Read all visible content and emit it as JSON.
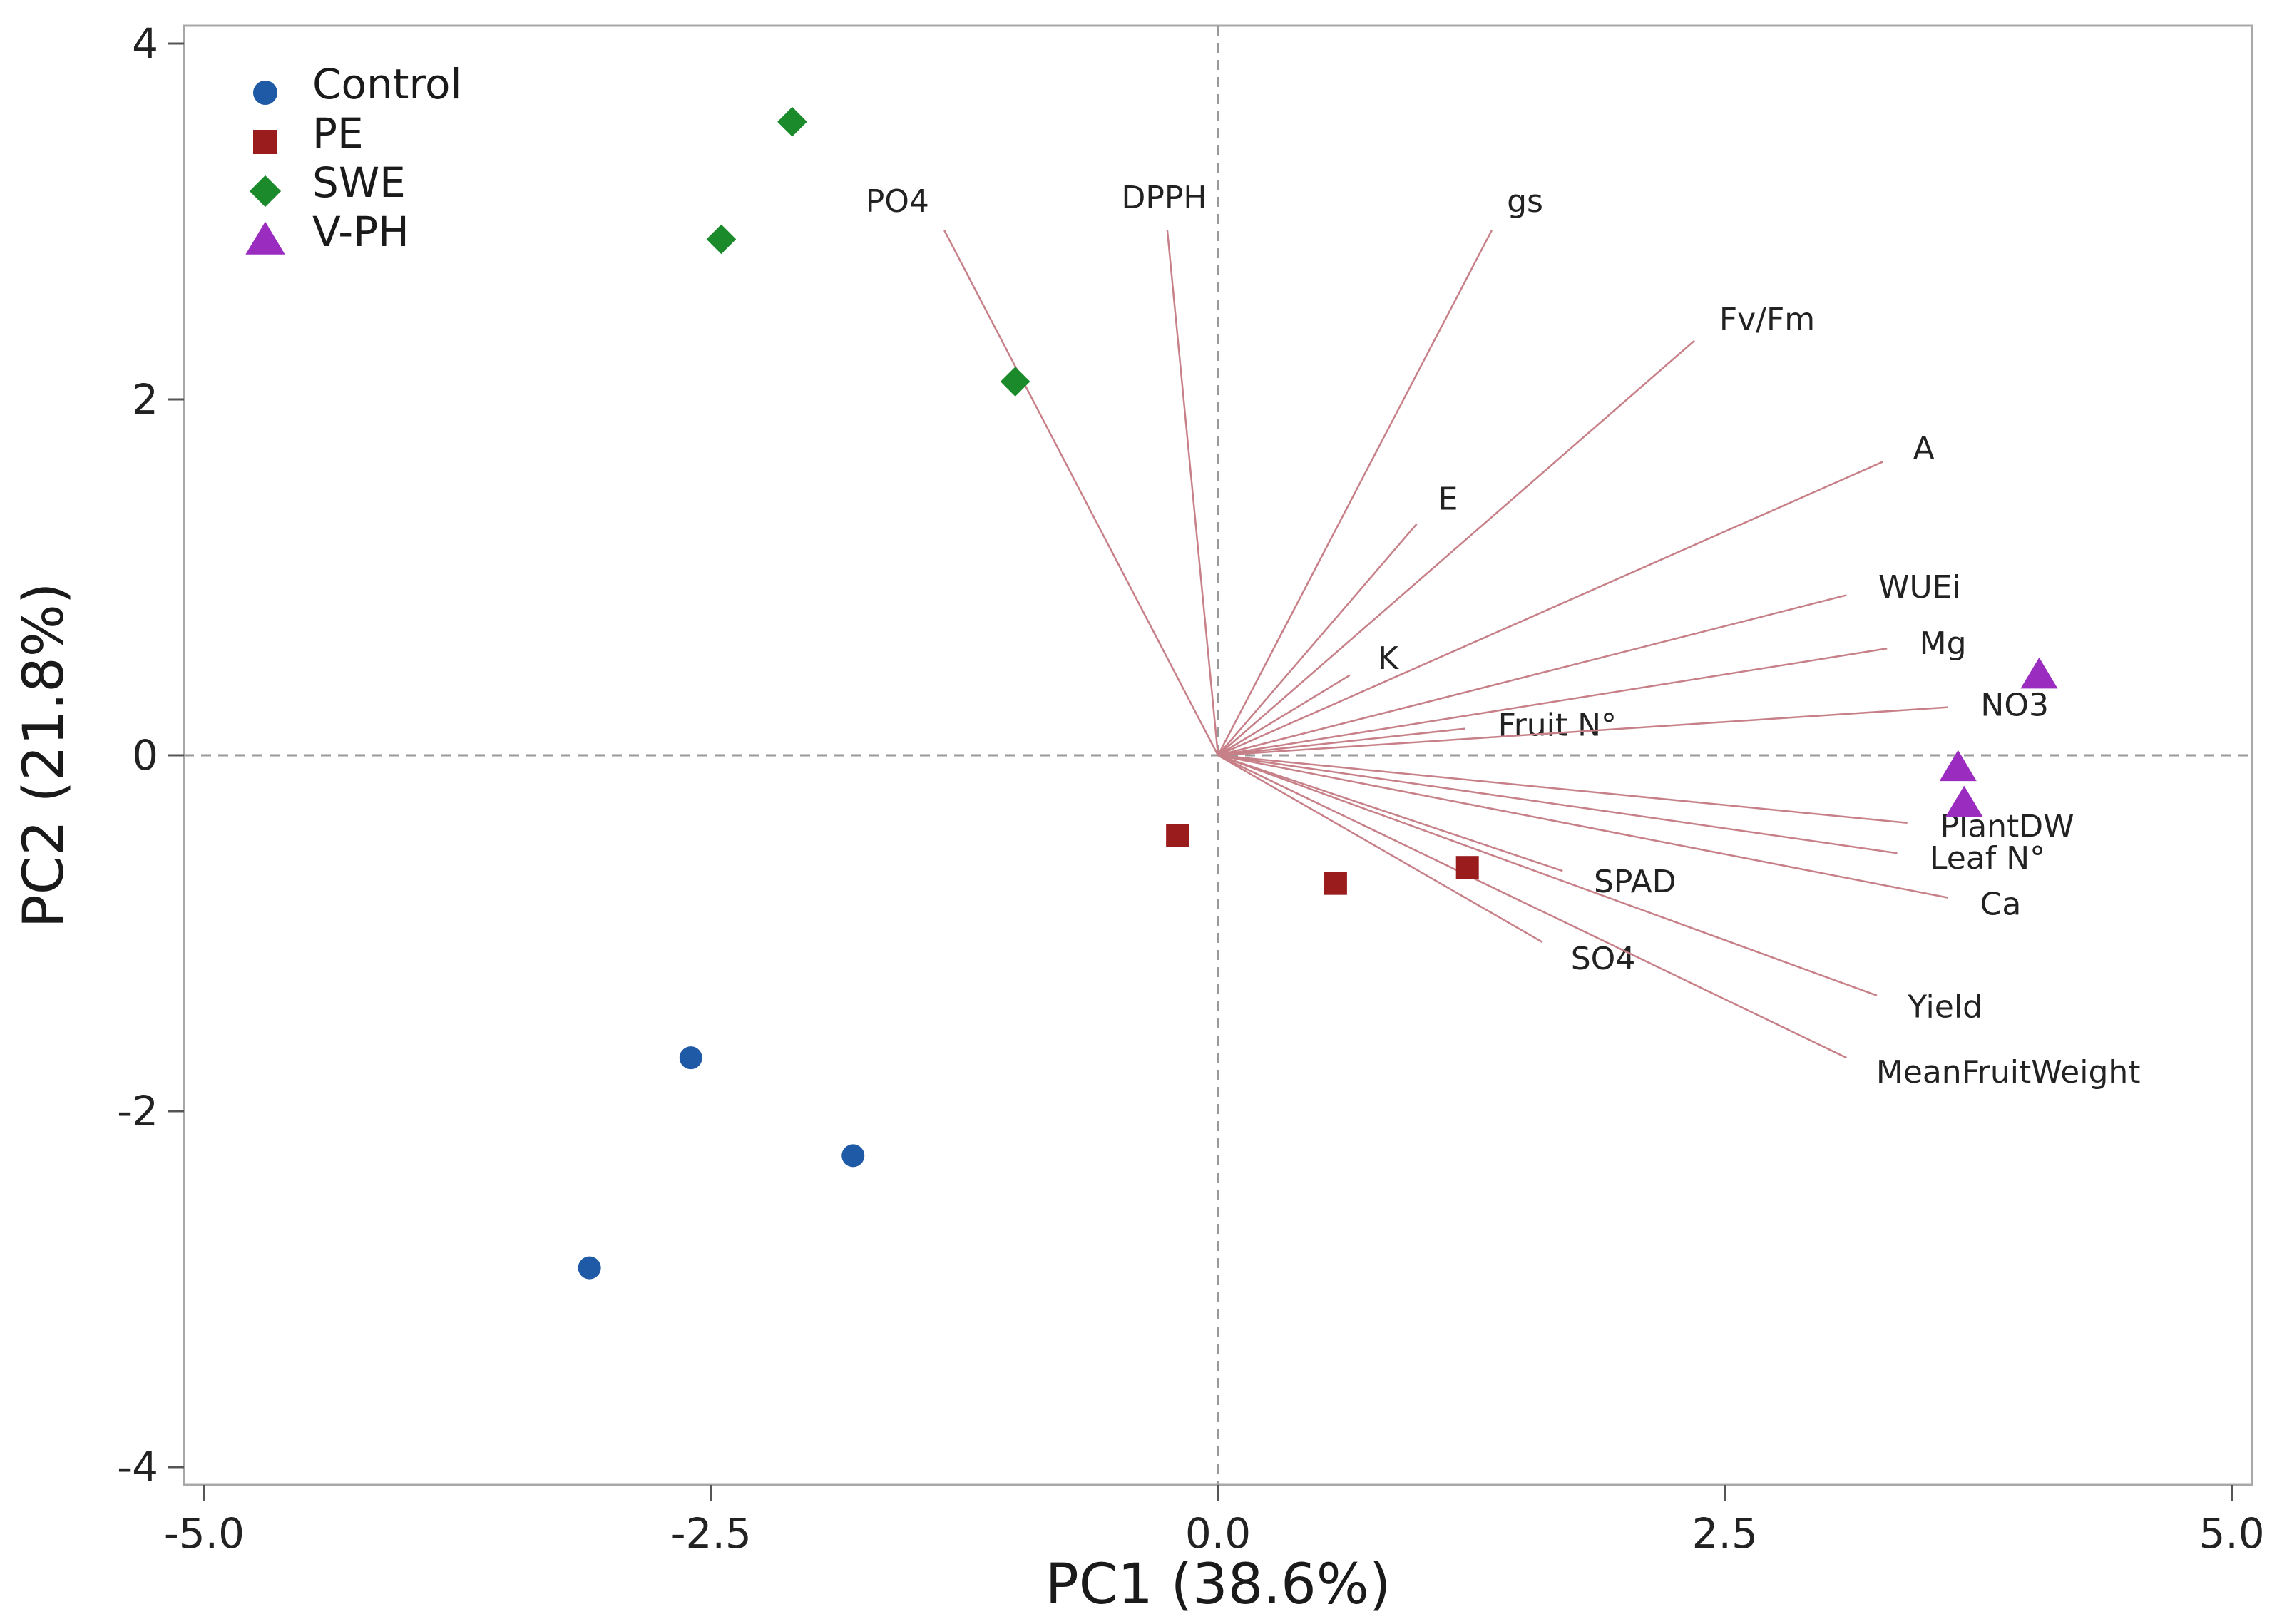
{
  "chart_data": {
    "type": "scatter",
    "subtype": "biplot",
    "xlabel": "PC1 (38.6%)",
    "ylabel": "PC2 (21.8%)",
    "xlim": [
      -5.1,
      5.1
    ],
    "ylim": [
      -4.1,
      4.1
    ],
    "x_ticks": [
      -5.0,
      -2.5,
      0.0,
      2.5,
      5.0
    ],
    "x_tick_labels": [
      "-5.0",
      "-2.5",
      "0.0",
      "2.5",
      "5.0"
    ],
    "y_ticks": [
      -4,
      -2,
      0,
      2,
      4
    ],
    "y_tick_labels": [
      "-4",
      "-2",
      "0",
      "2",
      "4"
    ],
    "reference_lines": {
      "x": 0,
      "y": 0
    },
    "legend_position": "top-left",
    "series": [
      {
        "name": "Control",
        "marker": "circle",
        "color": "#1f5aa6",
        "points": [
          [
            -2.6,
            -1.7
          ],
          [
            -1.8,
            -2.25
          ],
          [
            -3.1,
            -2.88
          ]
        ]
      },
      {
        "name": "PE",
        "marker": "square",
        "color": "#9b1c1c",
        "points": [
          [
            -0.2,
            -0.45
          ],
          [
            0.58,
            -0.72
          ],
          [
            1.23,
            -0.63
          ]
        ]
      },
      {
        "name": "SWE",
        "marker": "diamond",
        "color": "#1a8a2a",
        "points": [
          [
            -2.1,
            3.56
          ],
          [
            -2.45,
            2.9
          ],
          [
            -1.0,
            2.1
          ]
        ]
      },
      {
        "name": "V-PH",
        "marker": "triangle",
        "color": "#9b2cc0",
        "points": [
          [
            4.05,
            0.45
          ],
          [
            3.65,
            -0.07
          ],
          [
            3.68,
            -0.27
          ]
        ]
      }
    ],
    "loadings": {
      "color": "#c78088",
      "vectors": [
        {
          "name": "PO4",
          "x": -1.35,
          "y": 2.95
        },
        {
          "name": "DPPH",
          "x": -0.25,
          "y": 2.95
        },
        {
          "name": "gs",
          "x": 1.35,
          "y": 2.95
        },
        {
          "name": "Fv/Fm",
          "x": 2.35,
          "y": 2.33
        },
        {
          "name": "A",
          "x": 3.28,
          "y": 1.65
        },
        {
          "name": "E",
          "x": 0.98,
          "y": 1.3
        },
        {
          "name": "WUEi",
          "x": 3.1,
          "y": 0.9
        },
        {
          "name": "Mg",
          "x": 3.3,
          "y": 0.6
        },
        {
          "name": "K",
          "x": 0.65,
          "y": 0.45
        },
        {
          "name": "Fruit N°",
          "x": 1.22,
          "y": 0.15
        },
        {
          "name": "NO3",
          "x": 3.6,
          "y": 0.27
        },
        {
          "name": "PlantDW",
          "x": 3.4,
          "y": -0.38
        },
        {
          "name": "Leaf N°",
          "x": 3.35,
          "y": -0.55
        },
        {
          "name": "Ca",
          "x": 3.6,
          "y": -0.8
        },
        {
          "name": "SPAD",
          "x": 1.7,
          "y": -0.65
        },
        {
          "name": "SO4",
          "x": 1.6,
          "y": -1.05
        },
        {
          "name": "Yield",
          "x": 3.25,
          "y": -1.35
        },
        {
          "name": "MeanFruitWeight",
          "x": 3.1,
          "y": -1.7
        }
      ]
    }
  }
}
